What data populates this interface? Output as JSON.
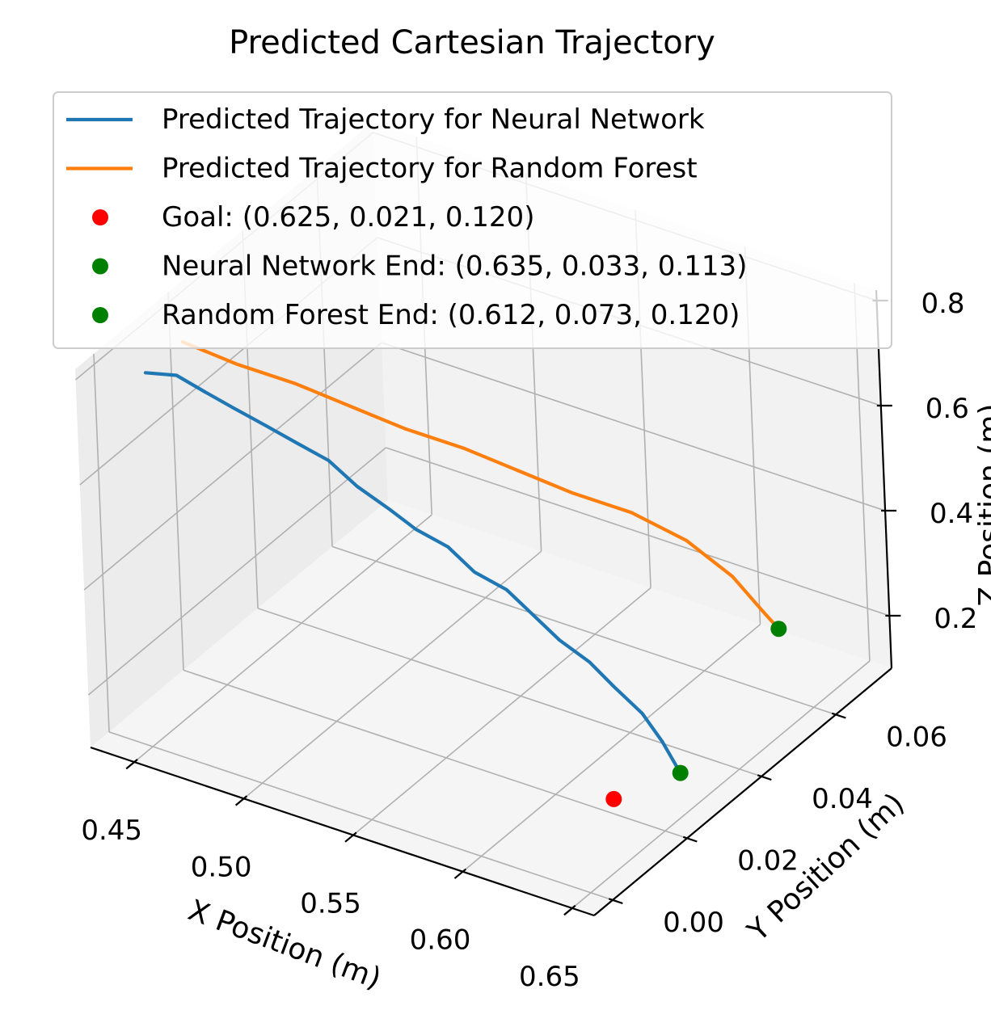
{
  "chart_data": {
    "type": "line",
    "projection": "3d",
    "title": "Predicted Cartesian Trajectory",
    "xlabel": "X Position (m)",
    "ylabel": "Y Position (m)",
    "zlabel": "Z Position (m)",
    "xlim": [
      0.43,
      0.66
    ],
    "ylim": [
      -0.005,
      0.075
    ],
    "zlim": [
      0.1,
      0.82
    ],
    "xticks": [
      "0.45",
      "0.50",
      "0.55",
      "0.60",
      "0.65"
    ],
    "yticks": [
      "0.00",
      "0.02",
      "0.04",
      "0.06"
    ],
    "zticks": [
      "0.2",
      "0.4",
      "0.6",
      "0.8"
    ],
    "grid": true,
    "legend_position": "top",
    "series": [
      {
        "name": "Predicted Trajectory for Neural Network",
        "color": "#1f77b4",
        "points": [
          [
            0.45,
            0.002,
            0.8
          ],
          [
            0.459,
            0.005,
            0.79
          ],
          [
            0.468,
            0.007,
            0.76
          ],
          [
            0.478,
            0.009,
            0.73
          ],
          [
            0.489,
            0.011,
            0.7
          ],
          [
            0.499,
            0.013,
            0.67
          ],
          [
            0.51,
            0.015,
            0.64
          ],
          [
            0.521,
            0.016,
            0.6
          ],
          [
            0.532,
            0.018,
            0.56
          ],
          [
            0.542,
            0.019,
            0.53
          ],
          [
            0.553,
            0.021,
            0.5
          ],
          [
            0.563,
            0.022,
            0.46
          ],
          [
            0.574,
            0.024,
            0.43
          ],
          [
            0.584,
            0.025,
            0.39
          ],
          [
            0.594,
            0.026,
            0.35
          ],
          [
            0.604,
            0.028,
            0.31
          ],
          [
            0.613,
            0.029,
            0.27
          ],
          [
            0.622,
            0.031,
            0.22
          ],
          [
            0.629,
            0.032,
            0.17
          ],
          [
            0.635,
            0.033,
            0.113
          ]
        ]
      },
      {
        "name": "Predicted Trajectory for Random Forest",
        "color": "#ff7f0e",
        "points": [
          [
            0.45,
            0.012,
            0.8
          ],
          [
            0.466,
            0.017,
            0.75
          ],
          [
            0.482,
            0.023,
            0.7
          ],
          [
            0.498,
            0.028,
            0.65
          ],
          [
            0.514,
            0.033,
            0.6
          ],
          [
            0.53,
            0.039,
            0.55
          ],
          [
            0.546,
            0.044,
            0.5
          ],
          [
            0.562,
            0.049,
            0.45
          ],
          [
            0.578,
            0.055,
            0.4
          ],
          [
            0.594,
            0.06,
            0.34
          ],
          [
            0.604,
            0.066,
            0.25
          ],
          [
            0.61,
            0.07,
            0.17
          ],
          [
            0.612,
            0.073,
            0.12
          ]
        ]
      }
    ],
    "markers": [
      {
        "name": "Goal: (0.625, 0.021, 0.120)",
        "color": "#ff0000",
        "point": [
          0.625,
          0.021,
          0.12
        ]
      },
      {
        "name": "Neural Network End: (0.635, 0.033, 0.113)",
        "color": "#008000",
        "point": [
          0.635,
          0.033,
          0.113
        ]
      },
      {
        "name": "Random Forest End: (0.612, 0.073, 0.120)",
        "color": "#008000",
        "point": [
          0.612,
          0.073,
          0.12
        ]
      }
    ]
  }
}
